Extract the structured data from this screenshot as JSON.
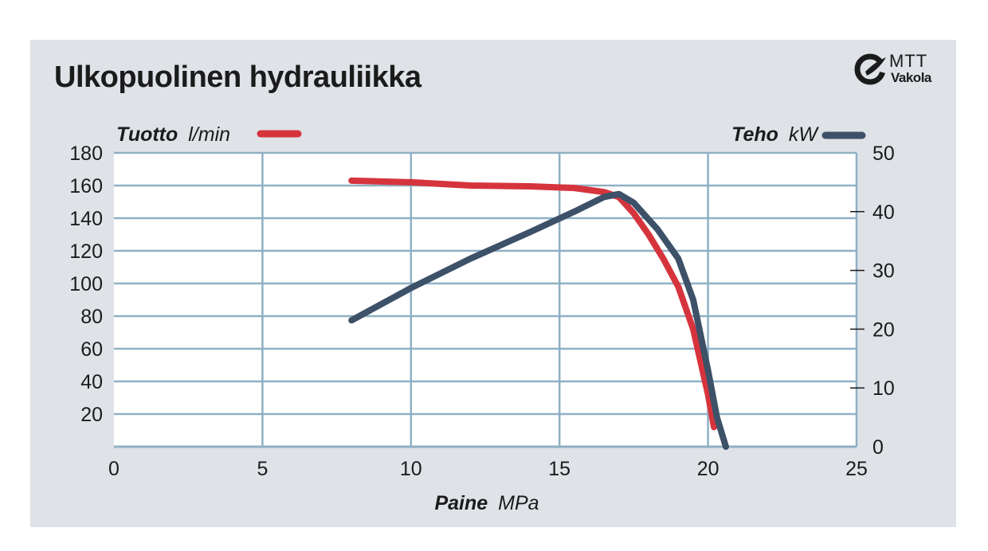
{
  "title": "Ulkopuolinen hydrauliikka",
  "logo": {
    "name": "MTT",
    "sub": "Vakola",
    "icon": "mtt-logo-icon"
  },
  "colors": {
    "flow": "#d6343d",
    "power": "#3d5168",
    "grid": "#8fb0c4",
    "panel": "#dfe2e7"
  },
  "chart_data": {
    "type": "line",
    "x_axis": {
      "label_bold": "Paine",
      "label_unit": "MPa",
      "range": [
        0,
        25
      ],
      "ticks": [
        "0",
        "5",
        "10",
        "15",
        "20",
        "25"
      ],
      "tick_values": [
        0,
        5,
        10,
        15,
        20,
        25
      ]
    },
    "y_axis_left": {
      "label_bold": "Tuotto",
      "label_unit": "l/min",
      "range": [
        0,
        180
      ],
      "ticks": [
        "20",
        "40",
        "60",
        "80",
        "100",
        "120",
        "140",
        "160",
        "180"
      ],
      "tick_values": [
        20,
        40,
        60,
        80,
        100,
        120,
        140,
        160,
        180
      ]
    },
    "y_axis_right": {
      "label_bold": "Teho",
      "label_unit": "kW",
      "range": [
        0,
        50
      ],
      "ticks": [
        "0",
        "10",
        "20",
        "30",
        "40",
        "50"
      ],
      "tick_values": [
        0,
        10,
        20,
        30,
        40,
        50
      ]
    },
    "grid": true,
    "series": [
      {
        "name": "Tuotto l/min",
        "axis": "left",
        "color": "#d6343d",
        "points": [
          [
            8,
            163
          ],
          [
            10,
            162
          ],
          [
            12,
            160
          ],
          [
            14,
            159.5
          ],
          [
            15.5,
            158.5
          ],
          [
            16.5,
            156
          ],
          [
            17,
            153
          ],
          [
            17.5,
            143
          ],
          [
            18,
            130
          ],
          [
            18.5,
            115
          ],
          [
            19,
            98
          ],
          [
            19.5,
            72
          ],
          [
            20,
            32
          ],
          [
            20.2,
            12
          ]
        ]
      },
      {
        "name": "Teho kW",
        "axis": "right",
        "color": "#3d5168",
        "points": [
          [
            8,
            21.5
          ],
          [
            10,
            27
          ],
          [
            12,
            32
          ],
          [
            14,
            36.5
          ],
          [
            15.5,
            40
          ],
          [
            16.5,
            42.5
          ],
          [
            17,
            43
          ],
          [
            17.5,
            41.5
          ],
          [
            18.3,
            37
          ],
          [
            19,
            32
          ],
          [
            19.5,
            25
          ],
          [
            20,
            13
          ],
          [
            20.3,
            5
          ],
          [
            20.6,
            0
          ]
        ]
      }
    ]
  }
}
